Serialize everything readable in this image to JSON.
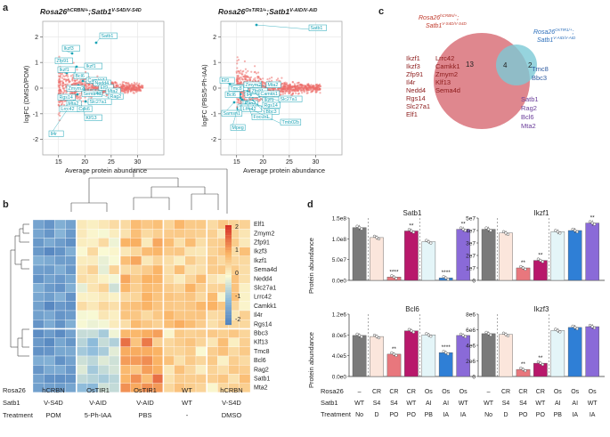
{
  "panels": {
    "a": {
      "letter": "a",
      "left": {
        "title_main": "Rosa26",
        "title_sup": "hCRBN/+",
        "title_mid": ";Satb1",
        "title_sup2": "V-S4D/V-S4D",
        "ylabel": "logFC (DMSO/POM)",
        "xlabel": "Average protein abundance",
        "xticks": [
          "15",
          "20",
          "25",
          "30"
        ],
        "yticks": [
          "2",
          "1",
          "0",
          "-1",
          "-2"
        ],
        "genes": [
          "Satb1",
          "Ikzf3",
          "Zfp91",
          "Ikzf1",
          "Ikzf1",
          "Bcl6",
          "Camkk1",
          "Nedd4",
          "Zmym2",
          "Sema4d",
          "Elf1",
          "Mta2",
          "Rag2",
          "Rgs14",
          "Mta2",
          "Slc27a1",
          "Lrrc42",
          "Cdk6",
          "Klf13",
          "Il4r"
        ]
      },
      "right": {
        "title_main": "Rosa26",
        "title_sup": "OsTIR1/+",
        "title_mid": ";Satb1",
        "title_sup2": "V-AID/V-AID",
        "ylabel": "logFC (PBS/5-Ph-IAA)",
        "xlabel": "Average protein abundance",
        "xticks": [
          "15",
          "20",
          "25",
          "30"
        ],
        "yticks": [
          "2",
          "1",
          "0",
          "-1",
          "-2"
        ],
        "genes": [
          "Satb1",
          "Elf1",
          "Ikzf3",
          "Zmym2",
          "Il4r",
          "Mta2",
          "Tmc8",
          "Zfp91",
          "Camkk1",
          "Bcl6",
          "Ikzf1",
          "Rag2",
          "Sema4d",
          "Lrrc42",
          "Rgs14",
          "Bbc3",
          "Samsn1",
          "Focus1",
          "Tmb02b",
          "Mpeg",
          "Slc27a1"
        ]
      }
    },
    "b": {
      "letter": "b",
      "genes": [
        "Elf1",
        "Zmym2",
        "Zfp91",
        "Ikzf3",
        "Ikzf1",
        "Sema4d",
        "Nedd4",
        "Slc27a1",
        "Lrrc42",
        "Camkk1",
        "Il4r",
        "Rgs14",
        "Bbc3",
        "Klf13",
        "Tmc8",
        "Bcl6",
        "Rag2",
        "Satb1",
        "Mta2"
      ],
      "colorbar_ticks": [
        "2",
        "1",
        "0",
        "-1",
        "-2"
      ],
      "row_titles": [
        "Rosa26",
        "Satb1",
        "Treatment"
      ],
      "groups": [
        {
          "rosa": "hCRBN",
          "satb1": "V-S4D",
          "treat": "POM"
        },
        {
          "rosa": "OsTIR1",
          "satb1": "V-AID",
          "treat": "5-Ph-IAA"
        },
        {
          "rosa": "OsTIR1",
          "satb1": "V-AID",
          "treat": "PBS"
        },
        {
          "rosa": "WT",
          "satb1": "WT",
          "treat": "-"
        },
        {
          "rosa": "hCRBN",
          "satb1": "V-S4D",
          "treat": "DMSO"
        }
      ]
    },
    "c": {
      "letter": "c",
      "left_title_main": "Rosa26",
      "left_title_sup": "hCRBN/+",
      "left_title_line2": "Satb1",
      "left_title_sup2": "V-S4D/V-S4D",
      "right_title_main": "Rosa26",
      "right_title_sup": "OsTIR1/+",
      "right_title_line2": "Satb1",
      "right_title_sup2": "V-AID/V-AID",
      "count_left": "13",
      "count_overlap": "4",
      "count_right": "2",
      "left_genes_col1": [
        "Ikzf1",
        "Ikzf3",
        "Zfp91",
        "Il4r",
        "Nedd4",
        "Rgs14",
        "Slc27a1",
        "Elf1"
      ],
      "left_genes_col2": [
        "Lrrc42",
        "Camkk1",
        "Zmym2",
        "Klf13",
        "Sema4d"
      ],
      "right_genes": [
        "Tmc8",
        "Bbc3"
      ],
      "shared_genes": [
        "Satb1",
        "Rag2",
        "Bcl6",
        "Mta2"
      ],
      "colors": {
        "left": "#d9727a",
        "right": "#7cc9d6",
        "left_text": "#c0392b",
        "right_text": "#2c6fbb",
        "overlap_text": "#6a3d9a"
      }
    },
    "d": {
      "letter": "d",
      "ylabel": "Protein abundance",
      "row_labels": [
        "Rosa26",
        "Satb1",
        "Treatment"
      ],
      "conditions": [
        {
          "rosa": "–",
          "satb1": "WT",
          "treat": "No"
        },
        {
          "rosa": "CR",
          "satb1": "S4",
          "treat": "D"
        },
        {
          "rosa": "CR",
          "satb1": "S4",
          "treat": "PO"
        },
        {
          "rosa": "CR",
          "satb1": "WT",
          "treat": "PO"
        },
        {
          "rosa": "Os",
          "satb1": "AI",
          "treat": "PB"
        },
        {
          "rosa": "Os",
          "satb1": "AI",
          "treat": "IA"
        },
        {
          "rosa": "Os",
          "satb1": "WT",
          "treat": "IA"
        }
      ],
      "bar_colors": [
        "#7a7a7a",
        "#fbe6dc",
        "#e8777d",
        "#b8186b",
        "#e4f5f8",
        "#2f7fd6",
        "#8a6ad8"
      ],
      "plots": [
        {
          "title": "Satb1",
          "yticks": [
            "1.5e8",
            "1.0e8",
            "5.0e7",
            "0.0e0"
          ],
          "ymax": 1.5,
          "values": [
            1.27,
            1.03,
            0.08,
            1.19,
            0.93,
            0.06,
            1.23
          ],
          "stars": [
            "",
            "",
            "****",
            "**",
            "",
            "****",
            "**"
          ]
        },
        {
          "title": "Ikzf1",
          "yticks": [
            "5e7",
            "4e7",
            "3e7",
            "2e7",
            "1e7",
            "0"
          ],
          "ymax": 5.0,
          "values": [
            4.1,
            3.8,
            1.0,
            1.6,
            3.9,
            4.0,
            4.6
          ],
          "stars": [
            "",
            "",
            "**",
            "**",
            "",
            "",
            "**"
          ]
        },
        {
          "title": "Bcl6",
          "yticks": [
            "1.2e6",
            "8.0e5",
            "4.0e5",
            "0.0e0"
          ],
          "ymax": 1.2,
          "values": [
            0.79,
            0.77,
            0.43,
            0.88,
            0.8,
            0.46,
            0.79
          ],
          "stars": [
            "",
            "",
            "**",
            "",
            "",
            "****",
            ""
          ]
        },
        {
          "title": "Ikzf3",
          "yticks": [
            "8e6",
            "6e6",
            "4e6",
            "2e6",
            "0"
          ],
          "ymax": 8.0,
          "values": [
            5.5,
            5.4,
            0.9,
            1.7,
            5.9,
            6.3,
            6.4
          ],
          "stars": [
            "",
            "",
            "**",
            "**",
            "",
            "",
            ""
          ]
        }
      ]
    }
  }
}
